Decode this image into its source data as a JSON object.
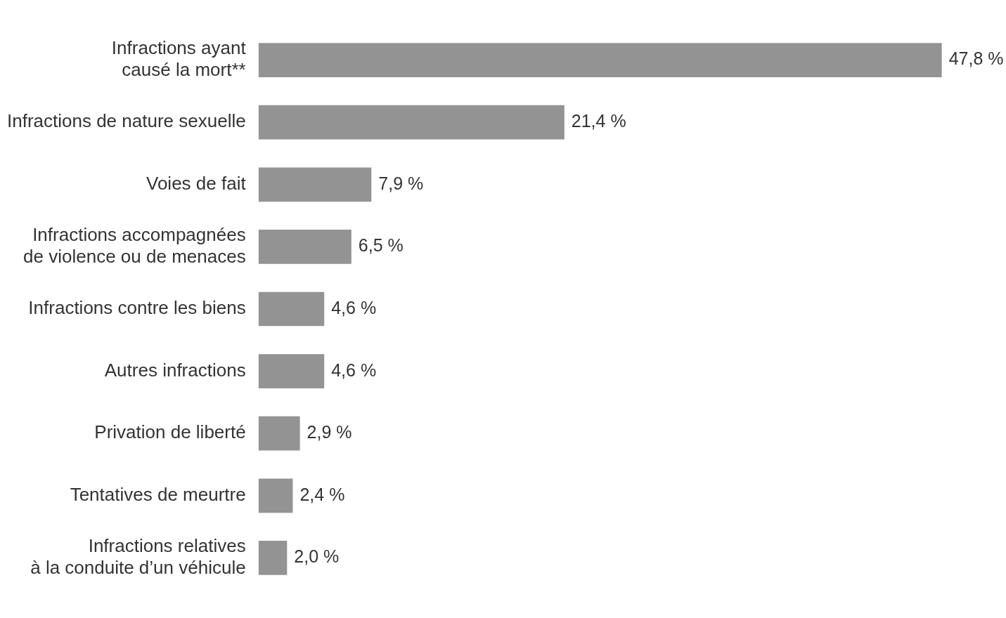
{
  "chart_data": {
    "type": "bar",
    "orientation": "horizontal",
    "categories": [
      "Infractions ayant\ncausé la mort**",
      "Infractions de nature sexuelle",
      "Voies de fait",
      "Infractions accompagnées\nde violence ou de menaces",
      "Infractions contre les biens",
      "Autres infractions",
      "Privation de liberté",
      "Tentatives de meurtre",
      "Infractions relatives\nà la conduite d’un véhicule"
    ],
    "values": [
      47.8,
      21.4,
      7.9,
      6.5,
      4.6,
      4.6,
      2.9,
      2.4,
      2.0
    ],
    "value_labels": [
      "47,8 %",
      "21,4 %",
      "7,9 %",
      "6,5 %",
      "4,6 %",
      "4,6 %",
      "2,9 %",
      "2,4 %",
      "2,0 %"
    ],
    "color": "#939393",
    "grid": false,
    "legend": false
  }
}
